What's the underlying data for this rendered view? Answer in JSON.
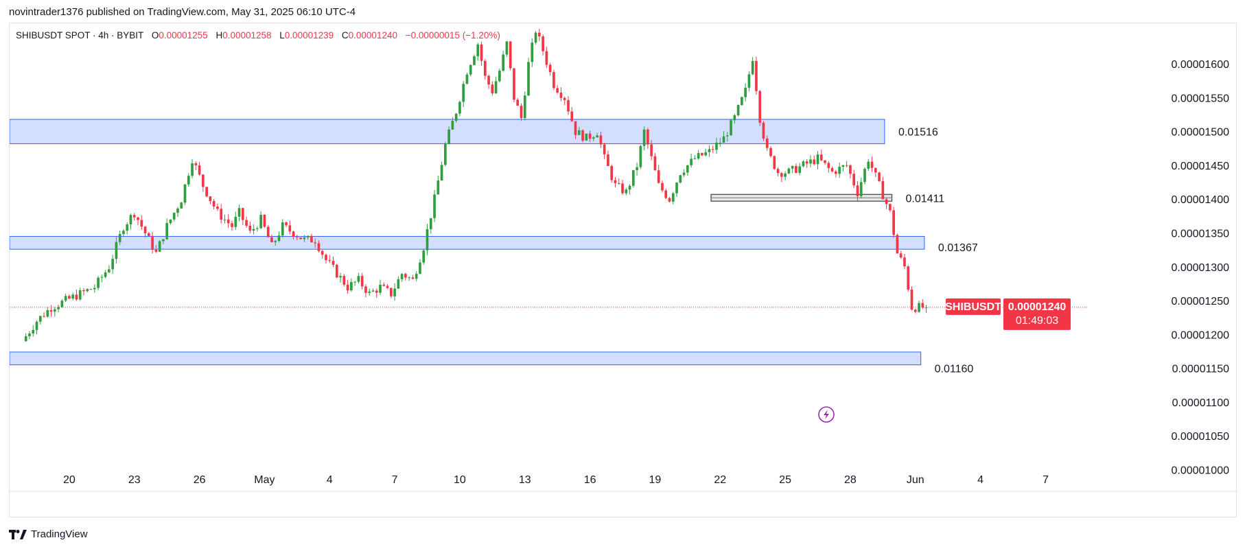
{
  "header": {
    "publisher_line": "novintrader1376 published on TradingView.com, May 31, 2025 06:10 UTC-4"
  },
  "legend": {
    "symbol": "SHIBUSDT SPOT · 4h · BYBIT",
    "open_label": "O",
    "open": "0.00001255",
    "high_label": "H",
    "high": "0.00001258",
    "low_label": "L",
    "low": "0.00001239",
    "close_label": "C",
    "close": "0.00001240",
    "change": "−0.00000015 (−1.20%)"
  },
  "footer": {
    "brand": "TradingView",
    "logo_icon": "tradingview-logo-icon"
  },
  "colors": {
    "up": "#089981",
    "up_body": "#2e9e3e",
    "down": "#f23645",
    "zone_fill": "#d4deff",
    "zone_border": "#2962ff",
    "grey_zone": "#e8e8e8"
  },
  "price_tag": {
    "symbol": "SHIBUSDT",
    "price": "0.00001240",
    "countdown": "01:49:03"
  },
  "flash_icon": "lightning-icon",
  "chart_data": {
    "type": "candlestick",
    "title": "",
    "y_axis": {
      "ticks": [
        "0.00001600",
        "0.00001550",
        "0.00001500",
        "0.00001450",
        "0.00001400",
        "0.00001350",
        "0.00001300",
        "0.00001250",
        "0.00001200",
        "0.00001150",
        "0.00001100",
        "0.00001050",
        "0.00001000"
      ],
      "tick_values": [
        1.6e-05,
        1.55e-05,
        1.5e-05,
        1.45e-05,
        1.4e-05,
        1.35e-05,
        1.3e-05,
        1.25e-05,
        1.2e-05,
        1.15e-05,
        1.1e-05,
        1.05e-05,
        1e-05
      ],
      "range": [
        9.7e-06,
        1.66e-05
      ]
    },
    "x_axis": {
      "ticks": [
        {
          "label": "20",
          "bar": 12
        },
        {
          "label": "23",
          "bar": 30
        },
        {
          "label": "26",
          "bar": 48
        },
        {
          "label": "May",
          "bar": 66
        },
        {
          "label": "4",
          "bar": 84
        },
        {
          "label": "7",
          "bar": 102
        },
        {
          "label": "10",
          "bar": 120
        },
        {
          "label": "13",
          "bar": 138
        },
        {
          "label": "16",
          "bar": 156
        },
        {
          "label": "19",
          "bar": 174
        },
        {
          "label": "22",
          "bar": 192
        },
        {
          "label": "25",
          "bar": 210
        },
        {
          "label": "28",
          "bar": 228
        },
        {
          "label": "Jun",
          "bar": 246
        },
        {
          "label": "4",
          "bar": 264
        },
        {
          "label": "7",
          "bar": 282
        }
      ],
      "range": [
        -4,
        294
      ]
    },
    "zones": [
      {
        "label": "0.01516",
        "low": 1.482e-05,
        "high": 1.518e-05,
        "bar_end": 238,
        "style": "blue"
      },
      {
        "label": "0.01411",
        "low": 1.397e-05,
        "high": 1.407e-05,
        "bar_start": 190,
        "bar_end": 240,
        "style": "grey"
      },
      {
        "label": "0.01367",
        "low": 1.326e-05,
        "high": 1.345e-05,
        "bar_end": 249,
        "style": "blue"
      },
      {
        "label": "0.01160",
        "low": 1.155e-05,
        "high": 1.174e-05,
        "bar_end": 248,
        "style": "blue"
      }
    ],
    "last_price": 1.24e-05,
    "anchors": [
      [
        0,
        1.19e-05
      ],
      [
        4,
        1.22e-05
      ],
      [
        8,
        1.24e-05
      ],
      [
        12,
        1.25e-05
      ],
      [
        16,
        1.26e-05
      ],
      [
        20,
        1.27e-05
      ],
      [
        24,
        1.3e-05
      ],
      [
        28,
        1.36e-05
      ],
      [
        31,
        1.38e-05
      ],
      [
        34,
        1.35e-05
      ],
      [
        37,
        1.32e-05
      ],
      [
        40,
        1.36e-05
      ],
      [
        44,
        1.4e-05
      ],
      [
        47,
        1.46e-05
      ],
      [
        50,
        1.42e-05
      ],
      [
        54,
        1.38e-05
      ],
      [
        58,
        1.36e-05
      ],
      [
        60,
        1.38e-05
      ],
      [
        63,
        1.35e-05
      ],
      [
        66,
        1.37e-05
      ],
      [
        69,
        1.33e-05
      ],
      [
        72,
        1.36e-05
      ],
      [
        75,
        1.35e-05
      ],
      [
        78,
        1.34e-05
      ],
      [
        81,
        1.34e-05
      ],
      [
        84,
        1.31e-05
      ],
      [
        87,
        1.29e-05
      ],
      [
        90,
        1.27e-05
      ],
      [
        93,
        1.28e-05
      ],
      [
        96,
        1.26e-05
      ],
      [
        99,
        1.27e-05
      ],
      [
        102,
        1.26e-05
      ],
      [
        105,
        1.29e-05
      ],
      [
        108,
        1.28e-05
      ],
      [
        111,
        1.33e-05
      ],
      [
        114,
        1.4e-05
      ],
      [
        117,
        1.48e-05
      ],
      [
        120,
        1.53e-05
      ],
      [
        123,
        1.59e-05
      ],
      [
        126,
        1.63e-05
      ],
      [
        128,
        1.58e-05
      ],
      [
        130,
        1.56e-05
      ],
      [
        132,
        1.59e-05
      ],
      [
        134,
        1.63e-05
      ],
      [
        136,
        1.55e-05
      ],
      [
        138,
        1.52e-05
      ],
      [
        140,
        1.6e-05
      ],
      [
        142,
        1.65e-05
      ],
      [
        144,
        1.62e-05
      ],
      [
        147,
        1.57e-05
      ],
      [
        150,
        1.55e-05
      ],
      [
        153,
        1.5e-05
      ],
      [
        156,
        1.49e-05
      ],
      [
        159,
        1.5e-05
      ],
      [
        161,
        1.46e-05
      ],
      [
        164,
        1.42e-05
      ],
      [
        167,
        1.41e-05
      ],
      [
        170,
        1.45e-05
      ],
      [
        172,
        1.5e-05
      ],
      [
        174,
        1.46e-05
      ],
      [
        176,
        1.42e-05
      ],
      [
        179,
        1.4e-05
      ],
      [
        182,
        1.44e-05
      ],
      [
        186,
        1.46e-05
      ],
      [
        190,
        1.47e-05
      ],
      [
        194,
        1.49e-05
      ],
      [
        197,
        1.52e-05
      ],
      [
        200,
        1.56e-05
      ],
      [
        202,
        1.61e-05
      ],
      [
        204,
        1.52e-05
      ],
      [
        206,
        1.47e-05
      ],
      [
        209,
        1.44e-05
      ],
      [
        212,
        1.44e-05
      ],
      [
        216,
        1.45e-05
      ],
      [
        220,
        1.46e-05
      ],
      [
        224,
        1.44e-05
      ],
      [
        228,
        1.45e-05
      ],
      [
        231,
        1.41e-05
      ],
      [
        234,
        1.46e-05
      ],
      [
        237,
        1.42e-05
      ],
      [
        240,
        1.38e-05
      ],
      [
        242,
        1.32e-05
      ],
      [
        244,
        1.3e-05
      ],
      [
        246,
        1.24e-05
      ],
      [
        249,
        1.24e-05
      ]
    ]
  }
}
